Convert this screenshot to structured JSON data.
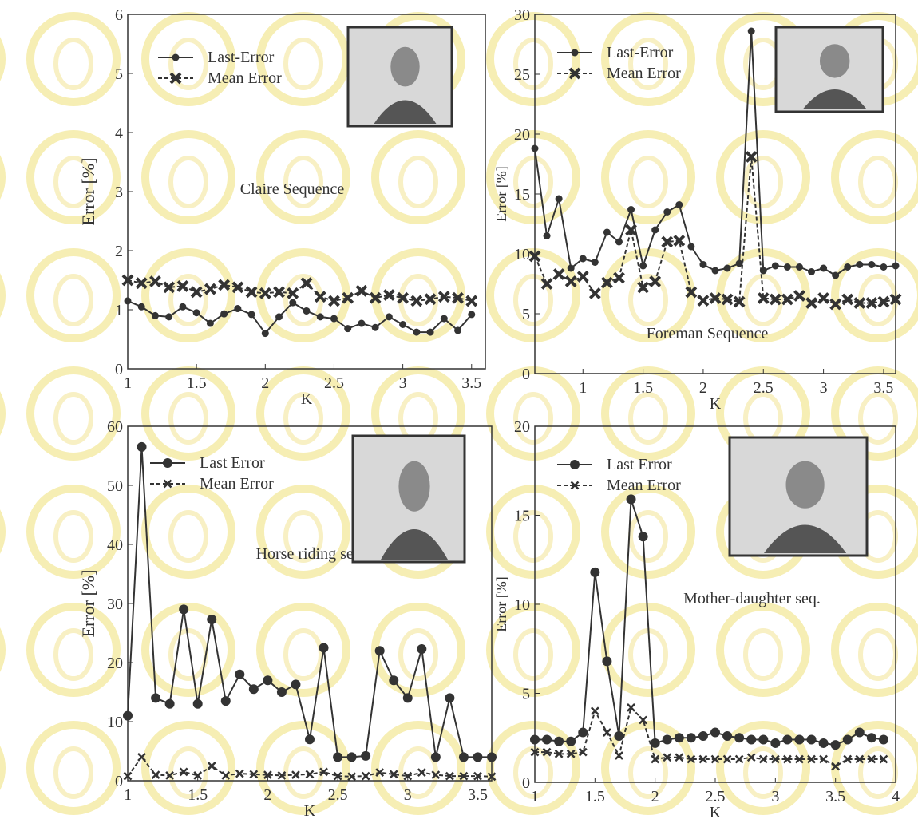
{
  "chart_data": [
    {
      "type": "line",
      "annotation": "Claire Sequence",
      "xlabel": "K",
      "ylabel": "Error [%]",
      "x": [
        1.0,
        1.1,
        1.2,
        1.3,
        1.4,
        1.5,
        1.6,
        1.7,
        1.8,
        1.9,
        2.0,
        2.1,
        2.2,
        2.3,
        2.4,
        2.5,
        2.6,
        2.7,
        2.8,
        2.9,
        3.0,
        3.1,
        3.2,
        3.3,
        3.4,
        3.5
      ],
      "series": [
        {
          "name": "Last-Error",
          "color": "#333333",
          "marker": "circle",
          "dashed": false,
          "values": [
            1.15,
            1.05,
            0.9,
            0.88,
            1.05,
            0.95,
            0.77,
            0.93,
            1.02,
            0.92,
            0.6,
            0.88,
            1.12,
            0.98,
            0.88,
            0.85,
            0.68,
            0.77,
            0.7,
            0.88,
            0.75,
            0.62,
            0.62,
            0.85,
            0.65,
            0.92
          ]
        },
        {
          "name": "Mean Error",
          "color": "#333333",
          "marker": "x",
          "dashed": true,
          "values": [
            1.5,
            1.45,
            1.48,
            1.38,
            1.4,
            1.3,
            1.35,
            1.42,
            1.38,
            1.3,
            1.28,
            1.3,
            1.28,
            1.45,
            1.22,
            1.15,
            1.2,
            1.32,
            1.2,
            1.25,
            1.2,
            1.15,
            1.18,
            1.22,
            1.2,
            1.15
          ]
        }
      ],
      "xlim": [
        1,
        3.6
      ],
      "xticks": [
        1,
        1.5,
        2,
        2.5,
        3,
        3.5
      ],
      "ylim": [
        0,
        6
      ],
      "yticks": [
        0,
        1,
        2,
        3,
        4,
        5,
        6
      ]
    },
    {
      "type": "line",
      "annotation": "Foreman Sequence",
      "xlabel": "K",
      "ylabel": "Error [%]",
      "x": [
        0.6,
        0.7,
        0.8,
        0.9,
        1.0,
        1.1,
        1.2,
        1.3,
        1.4,
        1.5,
        1.6,
        1.7,
        1.8,
        1.9,
        2.0,
        2.1,
        2.2,
        2.3,
        2.4,
        2.5,
        2.6,
        2.7,
        2.8,
        2.9,
        3.0,
        3.1,
        3.2,
        3.3,
        3.4,
        3.5,
        3.6
      ],
      "series": [
        {
          "name": "Last-Error",
          "color": "#333333",
          "marker": "circle",
          "dashed": false,
          "values": [
            18.8,
            11.5,
            14.6,
            8.8,
            9.6,
            9.3,
            11.8,
            11.0,
            13.7,
            9.0,
            12.0,
            13.5,
            14.1,
            10.6,
            9.1,
            8.6,
            8.8,
            9.2,
            28.6,
            8.6,
            9.0,
            8.9,
            8.9,
            8.5,
            8.8,
            8.2,
            8.9,
            9.1,
            9.1,
            8.9,
            9.0
          ]
        },
        {
          "name": "Mean Error",
          "color": "#333333",
          "marker": "x",
          "dashed": true,
          "values": [
            9.8,
            7.5,
            8.3,
            7.7,
            8.1,
            6.7,
            7.6,
            8.0,
            12.0,
            7.2,
            7.7,
            11.0,
            11.1,
            6.8,
            6.1,
            6.3,
            6.2,
            6.0,
            18.1,
            6.3,
            6.2,
            6.2,
            6.5,
            5.9,
            6.3,
            5.8,
            6.2,
            5.9,
            5.9,
            6.0,
            6.2
          ]
        }
      ],
      "xlim": [
        0.6,
        3.6
      ],
      "xticks": [
        1,
        1.5,
        2,
        2.5,
        3,
        3.5
      ],
      "ylim": [
        0,
        30
      ],
      "yticks": [
        0,
        5,
        10,
        15,
        20,
        25,
        30
      ]
    },
    {
      "type": "line",
      "annotation": "Horse riding sequence",
      "xlabel": "K",
      "ylabel": "Error [%]",
      "x": [
        1.0,
        1.1,
        1.2,
        1.3,
        1.4,
        1.5,
        1.6,
        1.7,
        1.8,
        1.9,
        2.0,
        2.1,
        2.2,
        2.3,
        2.4,
        2.5,
        2.6,
        2.7,
        2.8,
        2.9,
        3.0,
        3.1,
        3.2,
        3.3,
        3.4,
        3.5,
        3.6
      ],
      "series": [
        {
          "name": "Last Error",
          "color": "#333333",
          "marker": "circle",
          "dashed": false,
          "values": [
            11,
            56.5,
            14,
            13,
            29,
            13,
            27.3,
            13.5,
            18,
            15.5,
            17,
            15,
            16.3,
            7,
            22.5,
            4,
            4,
            4.2,
            22,
            17,
            14,
            22.3,
            4,
            14,
            4,
            4,
            4
          ]
        },
        {
          "name": "Mean Error",
          "color": "#333333",
          "marker": "x",
          "dashed": true,
          "values": [
            0.8,
            4,
            1,
            0.9,
            1.5,
            0.9,
            2.5,
            0.9,
            1.2,
            1.1,
            1,
            0.9,
            1,
            1.1,
            1.5,
            0.8,
            0.7,
            0.8,
            1.4,
            1.1,
            0.8,
            1.4,
            1,
            0.8,
            0.8,
            0.8,
            0.7
          ]
        }
      ],
      "xlim": [
        1,
        3.6
      ],
      "xticks": [
        1,
        1.5,
        2,
        2.5,
        3,
        3.5
      ],
      "ylim": [
        0,
        60
      ],
      "yticks": [
        0,
        10,
        20,
        30,
        40,
        50,
        60
      ]
    },
    {
      "type": "line",
      "annotation": "Mother-daughter seq.",
      "xlabel": "K",
      "ylabel": "Error [%]",
      "x": [
        1.0,
        1.1,
        1.2,
        1.3,
        1.4,
        1.5,
        1.6,
        1.7,
        1.8,
        1.9,
        2.0,
        2.1,
        2.2,
        2.3,
        2.4,
        2.5,
        2.6,
        2.7,
        2.8,
        2.9,
        3.0,
        3.1,
        3.2,
        3.3,
        3.4,
        3.5,
        3.6,
        3.7,
        3.8,
        3.9
      ],
      "series": [
        {
          "name": "Last Error",
          "color": "#333333",
          "marker": "circle",
          "dashed": false,
          "values": [
            2.4,
            2.4,
            2.3,
            2.3,
            2.8,
            11.8,
            6.8,
            2.6,
            15.9,
            13.8,
            2.2,
            2.4,
            2.5,
            2.5,
            2.6,
            2.8,
            2.6,
            2.5,
            2.4,
            2.4,
            2.2,
            2.4,
            2.4,
            2.4,
            2.2,
            2.1,
            2.4,
            2.8,
            2.5,
            2.4
          ]
        },
        {
          "name": "Mean Error",
          "color": "#333333",
          "marker": "x",
          "dashed": true,
          "values": [
            1.7,
            1.7,
            1.6,
            1.6,
            1.7,
            4.0,
            2.8,
            1.5,
            4.2,
            3.5,
            1.3,
            1.4,
            1.4,
            1.3,
            1.3,
            1.3,
            1.3,
            1.3,
            1.4,
            1.3,
            1.3,
            1.3,
            1.3,
            1.3,
            1.3,
            0.9,
            1.3,
            1.3,
            1.3,
            1.3
          ]
        }
      ],
      "xlim": [
        1,
        4
      ],
      "xticks": [
        1,
        1.5,
        2,
        2.5,
        3,
        3.5,
        4
      ],
      "ylim": [
        0,
        20
      ],
      "yticks": [
        0,
        5,
        10,
        15,
        20
      ]
    }
  ]
}
